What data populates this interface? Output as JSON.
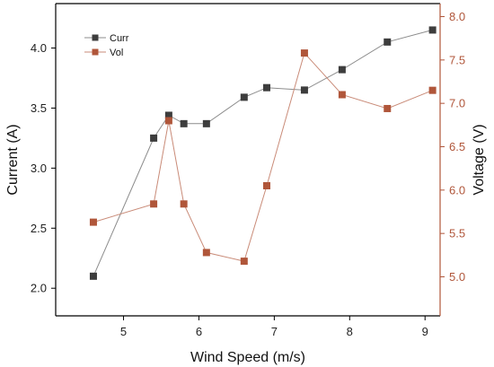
{
  "chart_data": {
    "type": "line",
    "title": "",
    "xlabel": "Wind Speed (m/s)",
    "ylabel_left": "Current (A)",
    "ylabel_right": "Voltage (V)",
    "xlim": [
      4.1,
      9.2
    ],
    "ylim_left": [
      1.77,
      4.37
    ],
    "ylim_right": [
      4.55,
      8.15
    ],
    "x_ticks": [
      5,
      6,
      7,
      8,
      9
    ],
    "y_ticks_left": [
      2.0,
      2.5,
      3.0,
      3.5,
      4.0
    ],
    "y_ticks_left_labels": [
      "2.0",
      "2.5",
      "3.0",
      "3.5",
      "4.0"
    ],
    "y_ticks_right": [
      5.0,
      5.5,
      6.0,
      6.5,
      7.0,
      7.5,
      8.0
    ],
    "y_ticks_right_labels": [
      "5.0",
      "5.5",
      "6.0",
      "6.5",
      "7.0",
      "7.5",
      "8.0"
    ],
    "legend_position": "top-left",
    "grid": false,
    "series": [
      {
        "name": "Curr",
        "axis": "left",
        "color": "#3d3d3d",
        "line_color": "#8c8c8c",
        "x": [
          4.6,
          5.4,
          5.6,
          5.8,
          6.1,
          6.6,
          6.9,
          7.4,
          7.9,
          8.5,
          9.1
        ],
        "values": [
          2.1,
          3.25,
          3.44,
          3.37,
          3.37,
          3.59,
          3.67,
          3.65,
          3.82,
          4.05,
          4.15
        ]
      },
      {
        "name": "Vol",
        "axis": "right",
        "color": "#b0563a",
        "line_color": "#c98b78",
        "x": [
          4.6,
          5.4,
          5.6,
          5.8,
          6.1,
          6.6,
          6.9,
          7.4,
          7.9,
          8.5,
          9.1
        ],
        "values": [
          5.63,
          5.84,
          6.8,
          5.84,
          5.28,
          5.18,
          6.05,
          7.58,
          7.1,
          6.94,
          7.15
        ]
      }
    ]
  },
  "colors": {
    "left_axis": "#000000",
    "right_axis": "#b0563a"
  }
}
